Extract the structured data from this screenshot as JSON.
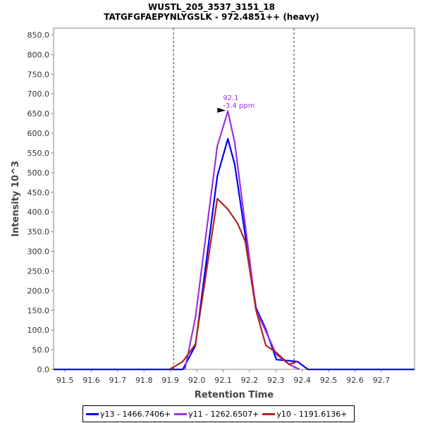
{
  "chart_data": {
    "type": "line",
    "title": "WUSTL_205_3537_3151_18",
    "subtitle": "TATGFGFAEPYNLYGSLK - 972.4851++ (heavy)",
    "xlabel": "Retention Time",
    "ylabel": "Intensity 10^3",
    "xlim": [
      91.457,
      92.826
    ],
    "ylim": [
      0,
      867
    ],
    "xticks": [
      "91.5",
      "91.6",
      "91.7",
      "91.8",
      "91.9",
      "92.0",
      "92.1",
      "92.2",
      "92.3",
      "92.4",
      "92.5",
      "92.6",
      "92.7"
    ],
    "yticks": [
      "0.0",
      "50.0",
      "100.0",
      "150.0",
      "200.0",
      "250.0",
      "300.0",
      "350.0",
      "400.0",
      "450.0",
      "500.0",
      "550.0",
      "600.0",
      "650.0",
      "700.0",
      "750.0",
      "800.0",
      "850.0"
    ],
    "boundaries": [
      91.912,
      92.369
    ],
    "annotation": {
      "x": 92.118,
      "y": 656,
      "line1": "92.1",
      "line2": "-3.4 ppm",
      "color": "#9932e0"
    },
    "series": [
      {
        "name": "y13 - 1466.7406+",
        "color": "#0000ff",
        "x": [
          91.45,
          91.947,
          91.995,
          92.078,
          92.118,
          92.144,
          92.225,
          92.262,
          92.302,
          92.35,
          92.382,
          92.422,
          92.826
        ],
        "y": [
          0,
          0,
          61,
          491,
          586,
          521,
          156,
          102,
          25,
          22,
          20,
          0,
          0
        ]
      },
      {
        "name": "y11 - 1262.6507+",
        "color": "#9932e0",
        "x": [
          91.955,
          91.995,
          92.078,
          92.118,
          92.144,
          92.225,
          92.262,
          92.302,
          92.35,
          92.39
        ],
        "y": [
          0,
          132,
          568,
          656,
          577,
          150,
          97,
          38,
          13,
          0
        ]
      },
      {
        "name": "y10 - 1191.6136+",
        "color": "#b22222",
        "x": [
          91.896,
          91.922,
          91.947,
          91.995,
          92.078,
          92.118,
          92.155,
          92.184,
          92.225,
          92.262,
          92.302,
          92.35,
          92.382
        ],
        "y": [
          0,
          10,
          20,
          64,
          434,
          407,
          371,
          325,
          150,
          61,
          43,
          13,
          20
        ]
      }
    ]
  }
}
